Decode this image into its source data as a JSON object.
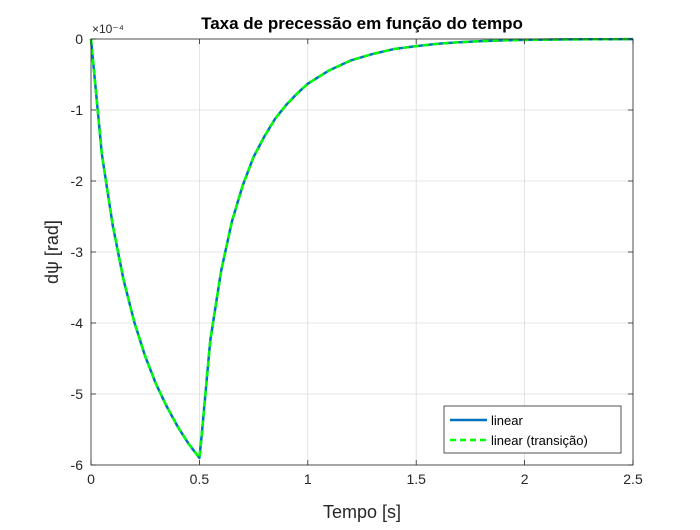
{
  "chart_data": {
    "type": "line",
    "title": "Taxa de precessão em função do tempo",
    "xlabel": "Tempo [s]",
    "ylabel": "dψ [rad]",
    "y_exponent": "×10⁻⁴",
    "xlim": [
      0,
      2.5
    ],
    "ylim": [
      -6,
      0
    ],
    "xticks": [
      0,
      0.5,
      1,
      1.5,
      2,
      2.5
    ],
    "xtick_labels": [
      "0",
      "0.5",
      "1",
      "1.5",
      "2",
      "2.5"
    ],
    "yticks": [
      -6,
      -5,
      -4,
      -3,
      -2,
      -1,
      0
    ],
    "ytick_labels": [
      "-6",
      "-5",
      "-4",
      "-3",
      "-2",
      "-1",
      "0"
    ],
    "grid": true,
    "legend_position": "bottom-right",
    "series": [
      {
        "name": "linear",
        "color": "#0072BD",
        "dash": "solid",
        "x": [
          0,
          0.05,
          0.1,
          0.15,
          0.2,
          0.25,
          0.3,
          0.35,
          0.4,
          0.45,
          0.5,
          0.51,
          0.55,
          0.6,
          0.65,
          0.7,
          0.75,
          0.8,
          0.85,
          0.9,
          0.95,
          1.0,
          1.1,
          1.2,
          1.3,
          1.4,
          1.5,
          1.6,
          1.7,
          1.8,
          1.9,
          2.0,
          2.1,
          2.2,
          2.3,
          2.4,
          2.5
        ],
        "y": [
          0,
          -1.62,
          -2.62,
          -3.39,
          -3.99,
          -4.47,
          -4.86,
          -5.18,
          -5.46,
          -5.7,
          -5.9,
          -5.6,
          -4.25,
          -3.27,
          -2.57,
          -2.06,
          -1.66,
          -1.37,
          -1.12,
          -0.93,
          -0.77,
          -0.63,
          -0.44,
          -0.3,
          -0.21,
          -0.14,
          -0.1,
          -0.067,
          -0.045,
          -0.03,
          -0.02,
          -0.013,
          -0.009,
          -0.006,
          -0.004,
          -0.003,
          -0.002
        ]
      },
      {
        "name": "linear (transição)",
        "color": "#00FF00",
        "dash": "dashed",
        "x": [
          0,
          0.05,
          0.1,
          0.15,
          0.2,
          0.25,
          0.3,
          0.35,
          0.4,
          0.45,
          0.5,
          0.51,
          0.55,
          0.6,
          0.65,
          0.7,
          0.75,
          0.8,
          0.85,
          0.9,
          0.95,
          1.0,
          1.1,
          1.2,
          1.3,
          1.4,
          1.5,
          1.6,
          1.7,
          1.8,
          1.9,
          2.0,
          2.1,
          2.2,
          2.3,
          2.4,
          2.5
        ],
        "y": [
          0,
          -1.62,
          -2.62,
          -3.39,
          -3.99,
          -4.47,
          -4.86,
          -5.18,
          -5.46,
          -5.7,
          -5.9,
          -5.6,
          -4.25,
          -3.27,
          -2.57,
          -2.06,
          -1.66,
          -1.37,
          -1.12,
          -0.93,
          -0.77,
          -0.63,
          -0.44,
          -0.3,
          -0.21,
          -0.14,
          -0.1,
          -0.067,
          -0.045,
          -0.03,
          -0.02,
          -0.013,
          -0.009,
          -0.006,
          -0.004,
          -0.003,
          -0.002
        ]
      }
    ]
  }
}
